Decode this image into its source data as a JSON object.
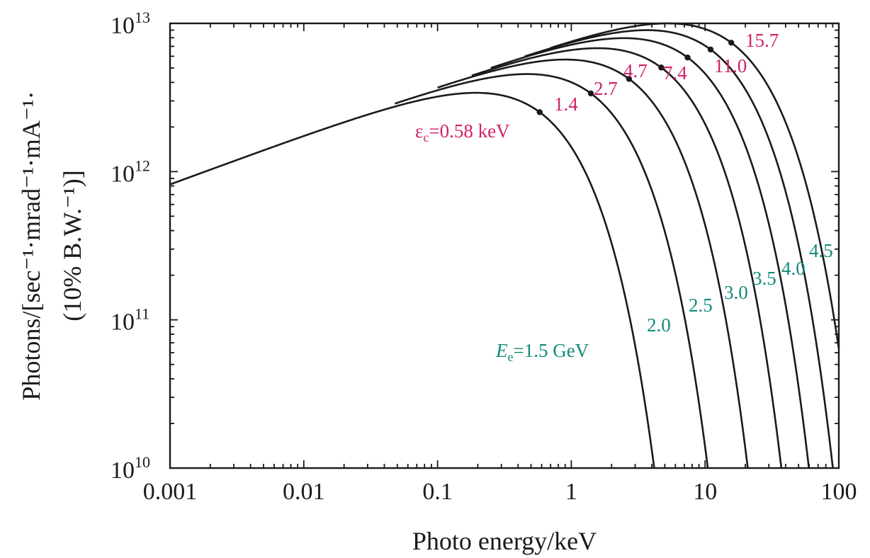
{
  "chart_data": {
    "type": "line",
    "xscale": "log",
    "yscale": "log",
    "xlim": [
      0.001,
      100
    ],
    "ylim": [
      10000000000.0,
      10000000000000.0
    ],
    "xlabel": "Photo energy/keV",
    "ylabel_line1": "Photons/[sec⁻¹·mrad⁻¹·mA⁻¹·",
    "ylabel_line2": "(10% B.W.⁻¹)]",
    "x_ticks": [
      {
        "value": 0.001,
        "label": "0.001"
      },
      {
        "value": 0.01,
        "label": "0.01"
      },
      {
        "value": 0.1,
        "label": "0.1"
      },
      {
        "value": 1,
        "label": "1"
      },
      {
        "value": 10,
        "label": "10"
      },
      {
        "value": 100,
        "label": "100"
      }
    ],
    "y_ticks": [
      {
        "value": 10000000000.0,
        "base": "10",
        "exp": "10"
      },
      {
        "value": 100000000000.0,
        "base": "10",
        "exp": "11"
      },
      {
        "value": 1000000000000.0,
        "base": "10",
        "exp": "12"
      },
      {
        "value": 10000000000000.0,
        "base": "10",
        "exp": "13"
      }
    ],
    "series": [
      {
        "electron_energy": "1.5 GeV",
        "electron_label": "=1.5 GeV",
        "critical_energy_keV": 0.58,
        "critical_label": "=0.58 keV",
        "x_start": 0.001,
        "peak_photons": 3400000000000.0
      },
      {
        "electron_energy": "2.0",
        "electron_label": "2.0",
        "critical_energy_keV": 1.4,
        "critical_label": "1.4",
        "x_start": 0.048,
        "peak_photons": 4550000000000.0
      },
      {
        "electron_energy": "2.5",
        "electron_label": "2.5",
        "critical_energy_keV": 2.7,
        "critical_label": "2.7",
        "x_start": 0.1,
        "peak_photons": 5700000000000.0
      },
      {
        "electron_energy": "3.0",
        "electron_label": "3.0",
        "critical_energy_keV": 4.7,
        "critical_label": "4.7",
        "x_start": 0.18,
        "peak_photons": 6800000000000.0
      },
      {
        "electron_energy": "3.5",
        "electron_label": "3.5",
        "critical_energy_keV": 7.4,
        "critical_label": "7.4",
        "x_start": 0.25,
        "peak_photons": 7950000000000.0
      },
      {
        "electron_energy": "4.0",
        "electron_label": "4.0",
        "critical_energy_keV": 11.0,
        "critical_label": "11.0",
        "x_start": 0.45,
        "peak_photons": 9000000000000.0
      },
      {
        "electron_energy": "4.5",
        "electron_label": "4.5",
        "critical_energy_keV": 15.7,
        "critical_label": "15.7",
        "x_start": 0.7,
        "peak_photons": 10000000000000.0
      }
    ],
    "epsilon_symbol": "ε",
    "epsilon_sub": "c",
    "E_symbol": "E",
    "E_sub": "e"
  },
  "colors": {
    "axis": "#1a1a1a",
    "critical_label": "#d0206a",
    "electron_label": "#138a7a"
  }
}
